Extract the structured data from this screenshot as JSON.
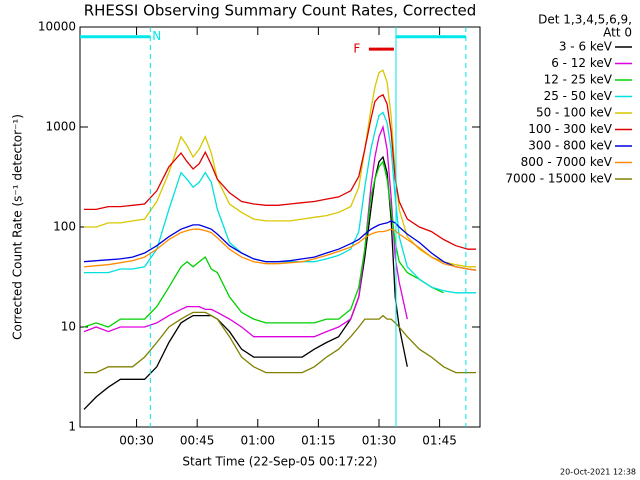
{
  "chart_data": {
    "type": "line",
    "title": "RHESSI Observing Summary Count Rates, Corrected",
    "x_label": "Start Time (22-Sep-05 00:17:22)",
    "y_label": "Corrected Count Rate (s⁻¹ detector⁻¹)",
    "legend_title": [
      "Det 1,3,4,5,6,9,",
      "Att 0"
    ],
    "legend": "outside-right",
    "footer": "20-Oct-2021 12:38",
    "log_y": true,
    "xlim": [
      16,
      115
    ],
    "ylim": [
      1,
      10000
    ],
    "xticks": [
      {
        "value": 30,
        "label": "00:30"
      },
      {
        "value": 45,
        "label": "00:45"
      },
      {
        "value": 60,
        "label": "01:00"
      },
      {
        "value": 75,
        "label": "01:15"
      },
      {
        "value": 90,
        "label": "01:30"
      },
      {
        "value": 105,
        "label": "01:45"
      }
    ],
    "yticks": [
      1,
      10,
      100,
      1000,
      10000
    ],
    "bars": [
      {
        "color": "#00e8e8",
        "start": 16,
        "end": 33.4,
        "y": 8000
      },
      {
        "color": "#00e8e8",
        "start": 94.2,
        "end": 111.5,
        "y": 8000
      },
      {
        "color": "#e00000",
        "start": 87.5,
        "end": 93.7,
        "y": 6000
      }
    ],
    "vlines": [
      {
        "x": 33.4,
        "color": "#00e8e8",
        "dashed": true
      },
      {
        "x": 94.2,
        "color": "#00e8e8",
        "dashed": false
      },
      {
        "x": 111.5,
        "color": "#00e8e8",
        "dashed": true
      }
    ],
    "annotations": [
      {
        "text": "N",
        "x": 35,
        "y": 8000,
        "color": "#00e8e8"
      },
      {
        "text": "F",
        "x": 84.5,
        "y": 6000,
        "color": "#e00000"
      }
    ],
    "x": [
      17,
      20,
      23,
      26,
      29,
      32,
      35,
      38,
      41,
      42.5,
      44,
      45.5,
      47,
      48.5,
      50,
      53,
      56,
      59,
      62,
      65,
      68,
      71,
      74,
      77,
      80,
      83,
      85,
      86.5,
      88,
      89,
      90,
      91,
      92,
      93,
      94,
      95,
      97,
      100,
      103,
      106,
      109,
      112,
      114
    ],
    "series": [
      {
        "name": "3 - 6 keV",
        "color": "#000000",
        "values": [
          1.5,
          2,
          2.5,
          3,
          3,
          3,
          4,
          7,
          11,
          12,
          13,
          13,
          13,
          13,
          12,
          9,
          6,
          5,
          5,
          5,
          5,
          5,
          6,
          7,
          8,
          12,
          20,
          50,
          150,
          300,
          450,
          500,
          350,
          120,
          20,
          10,
          4,
          null,
          null,
          null,
          null,
          null,
          null
        ]
      },
      {
        "name": "6 - 12 keV",
        "color": "#e000e0",
        "values": [
          9,
          10,
          9,
          10,
          10,
          10,
          11,
          13,
          15,
          16,
          16,
          16,
          15,
          15,
          14,
          12,
          10,
          8,
          8,
          8,
          8,
          8,
          8,
          9,
          10,
          12,
          20,
          60,
          250,
          500,
          800,
          1000,
          600,
          200,
          50,
          28,
          12,
          null,
          null,
          null,
          null,
          null,
          null
        ]
      },
      {
        "name": "12 - 25 keV",
        "color": "#00d000",
        "values": [
          10,
          11,
          10,
          12,
          12,
          12,
          16,
          25,
          40,
          45,
          40,
          45,
          50,
          38,
          35,
          20,
          14,
          12,
          11,
          11,
          11,
          11,
          11,
          12,
          12,
          15,
          25,
          60,
          200,
          300,
          400,
          450,
          300,
          150,
          70,
          45,
          35,
          30,
          25,
          22,
          null,
          null,
          null
        ]
      },
      {
        "name": "25 - 50 keV",
        "color": "#00e0e0",
        "values": [
          35,
          35,
          35,
          38,
          38,
          40,
          60,
          150,
          350,
          300,
          250,
          280,
          350,
          280,
          150,
          70,
          55,
          48,
          45,
          45,
          45,
          45,
          45,
          48,
          52,
          60,
          90,
          250,
          600,
          900,
          1300,
          1400,
          1100,
          600,
          200,
          80,
          40,
          30,
          25,
          23,
          22,
          22,
          22
        ]
      },
      {
        "name": "50 - 100 keV",
        "color": "#d8c800",
        "values": [
          100,
          100,
          110,
          110,
          115,
          120,
          180,
          350,
          800,
          650,
          500,
          600,
          800,
          550,
          300,
          170,
          140,
          120,
          115,
          115,
          115,
          120,
          125,
          130,
          140,
          160,
          250,
          600,
          1500,
          2500,
          3500,
          3700,
          2800,
          1300,
          350,
          150,
          80,
          60,
          50,
          45,
          42,
          40,
          40
        ]
      },
      {
        "name": "100 - 300 keV",
        "color": "#e00000",
        "values": [
          150,
          150,
          160,
          160,
          165,
          170,
          230,
          400,
          550,
          450,
          380,
          430,
          560,
          420,
          300,
          220,
          180,
          170,
          165,
          165,
          170,
          175,
          180,
          190,
          200,
          230,
          320,
          600,
          1200,
          1800,
          2000,
          2100,
          1700,
          900,
          300,
          180,
          120,
          100,
          90,
          75,
          65,
          60,
          60
        ]
      },
      {
        "name": "300 - 800 keV",
        "color": "#0000e0",
        "values": [
          45,
          46,
          47,
          48,
          50,
          55,
          65,
          80,
          95,
          100,
          105,
          105,
          100,
          95,
          85,
          65,
          55,
          48,
          45,
          45,
          46,
          48,
          50,
          55,
          60,
          68,
          75,
          85,
          95,
          100,
          105,
          108,
          110,
          115,
          110,
          100,
          85,
          70,
          55,
          45,
          40,
          38,
          37
        ]
      },
      {
        "name": "800 - 7000 keV",
        "color": "#ff8c00",
        "values": [
          40,
          41,
          42,
          44,
          46,
          50,
          60,
          75,
          88,
          92,
          95,
          95,
          92,
          88,
          78,
          60,
          50,
          45,
          43,
          43,
          44,
          45,
          48,
          52,
          57,
          63,
          70,
          78,
          85,
          88,
          90,
          90,
          92,
          95,
          92,
          85,
          75,
          62,
          50,
          43,
          40,
          38,
          37
        ]
      },
      {
        "name": "7000 - 15000 keV",
        "color": "#808000",
        "values": [
          3.5,
          3.5,
          4,
          4,
          4,
          5,
          7,
          10,
          12,
          13,
          14,
          14,
          14,
          13,
          12,
          8,
          5,
          4,
          3.5,
          3.5,
          3.5,
          3.5,
          4,
          5,
          6,
          8,
          10,
          12,
          12,
          12,
          12,
          13,
          12,
          12,
          11,
          10,
          8,
          6,
          5,
          4,
          3.5,
          3.5,
          3.5
        ]
      }
    ]
  }
}
